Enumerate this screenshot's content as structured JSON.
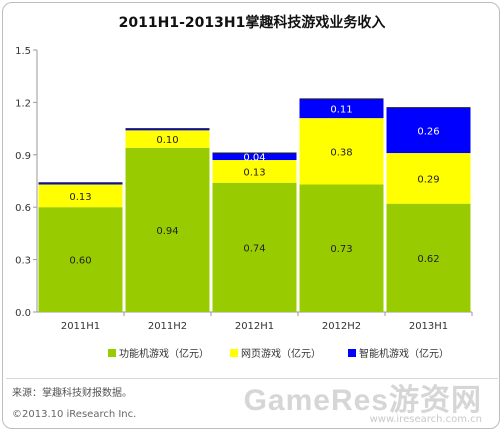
{
  "chart_data": {
    "type": "bar",
    "stacked": true,
    "title": "2011H1-2013H1掌趣科技游戏业务收入",
    "categories": [
      "2011H1",
      "2011H2",
      "2012H1",
      "2012H2",
      "2013H1"
    ],
    "series": [
      {
        "name": "功能机游戏（亿元）",
        "color": "#99cc00",
        "values": [
          0.6,
          0.94,
          0.74,
          0.73,
          0.62
        ],
        "labels": [
          "0.60",
          "0.94",
          "0.74",
          "0.73",
          "0.62"
        ]
      },
      {
        "name": "网页游戏（亿元）",
        "color": "#ffff00",
        "values": [
          0.13,
          0.1,
          0.13,
          0.38,
          0.29
        ],
        "labels": [
          "0.13",
          "0.10",
          "0.13",
          "0.38",
          "0.29"
        ]
      },
      {
        "name": "智能机游戏（亿元）",
        "color": "#0000ff",
        "values": [
          0.01,
          0.01,
          0.04,
          0.11,
          0.26
        ],
        "labels": [
          "",
          "",
          "0.04",
          "0.11",
          "0.26"
        ]
      }
    ],
    "ylim": [
      0,
      1.5
    ],
    "yticks": [
      "0.0",
      "0.3",
      "0.6",
      "0.9",
      "1.2",
      "1.5"
    ],
    "ytick_values": [
      0,
      0.3,
      0.6,
      0.9,
      1.2,
      1.5
    ],
    "grid": false,
    "legend_position": "bottom"
  },
  "footer": {
    "source": "来源：掌趣科技财报数据。",
    "copyright": "©2013.10 iResearch Inc.",
    "watermark": "GameRes游资网",
    "watermark_url": "www.iresearch.com.cn"
  }
}
